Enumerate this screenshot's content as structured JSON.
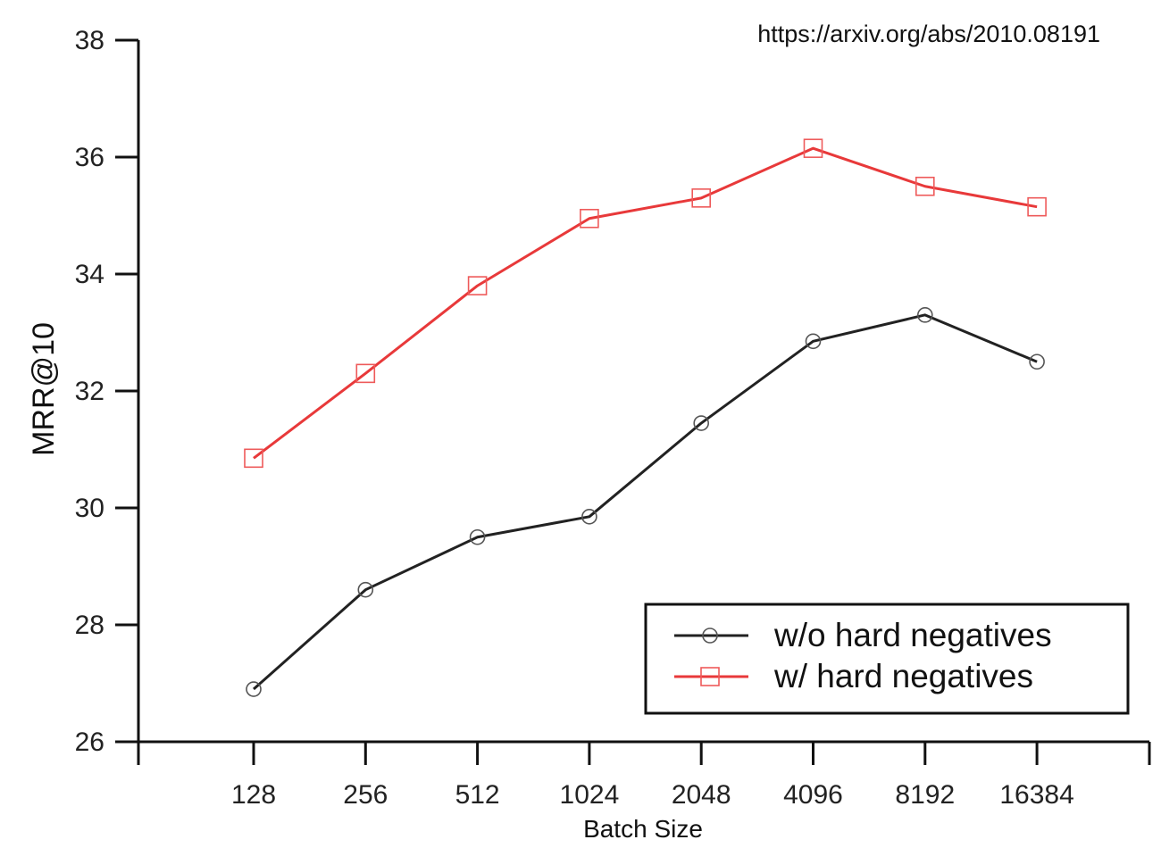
{
  "source_note": "https://arxiv.org/abs/2010.08191",
  "chart_data": {
    "type": "line",
    "x_scale": "log2",
    "categories": [
      "128",
      "256",
      "512",
      "1024",
      "2048",
      "4096",
      "8192",
      "16384"
    ],
    "xlabel": "Batch Size",
    "ylabel": "MRR@10",
    "ylim": [
      26,
      38
    ],
    "yticks": [
      "26",
      "28",
      "30",
      "32",
      "34",
      "36",
      "38"
    ],
    "grid": false,
    "legend_position": "bottom-right",
    "series": [
      {
        "name": "w/o hard negatives",
        "color": "#222222",
        "marker": "circle",
        "values": [
          26.9,
          28.6,
          29.5,
          29.85,
          31.45,
          32.85,
          33.3,
          32.5
        ]
      },
      {
        "name": "w/ hard negatives",
        "color": "#e8393a",
        "marker": "square",
        "values": [
          30.85,
          32.3,
          33.8,
          34.95,
          35.3,
          36.15,
          35.5,
          35.15
        ]
      }
    ]
  }
}
